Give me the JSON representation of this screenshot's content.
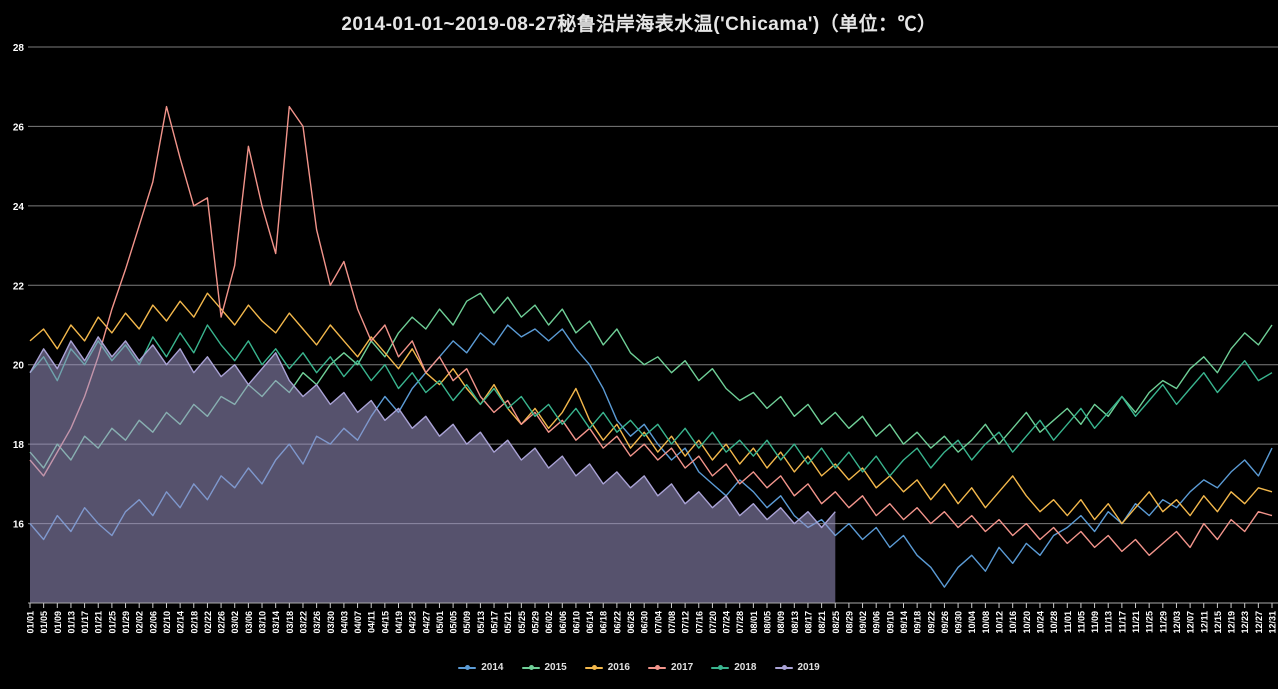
{
  "title": "2014-01-01~2019-08-27秘鲁沿岸海表水温('Chicama')（单位：℃）",
  "colors": {
    "background": "#000000",
    "grid_line": "#7d7d7d",
    "axis_line": "#aaaaaa",
    "tick": "#cccccc",
    "axis_label": "#ffffff",
    "title_text": "#e6e6e6",
    "legend_text": "#e0e0e0"
  },
  "legend": {
    "items": [
      {
        "label": "2014",
        "color": "#5b9bd5"
      },
      {
        "label": "2015",
        "color": "#6fcf97"
      },
      {
        "label": "2016",
        "color": "#f3b84c"
      },
      {
        "label": "2017",
        "color": "#f2948b"
      },
      {
        "label": "2018",
        "color": "#39b48e"
      },
      {
        "label": "2019",
        "color": "#aaa3d6"
      }
    ]
  },
  "chart_data": {
    "type": "line",
    "title": "2014-01-01~2019-08-27秘鲁沿岸海表水温('Chicama')（单位：℃）",
    "xlabel": "",
    "ylabel": "℃",
    "ylim": [
      14,
      28
    ],
    "yticks": [
      16,
      18,
      20,
      22,
      24,
      26,
      28
    ],
    "grid": true,
    "legend_position": "bottom",
    "categories": [
      "01/01",
      "01/05",
      "01/09",
      "01/13",
      "01/17",
      "01/21",
      "01/25",
      "01/29",
      "02/02",
      "02/06",
      "02/10",
      "02/14",
      "02/18",
      "02/22",
      "02/26",
      "03/02",
      "03/06",
      "03/10",
      "03/14",
      "03/18",
      "03/22",
      "03/26",
      "03/30",
      "04/03",
      "04/07",
      "04/11",
      "04/15",
      "04/19",
      "04/23",
      "04/27",
      "05/01",
      "05/05",
      "05/09",
      "05/13",
      "05/17",
      "05/21",
      "05/25",
      "05/29",
      "06/02",
      "06/06",
      "06/10",
      "06/14",
      "06/18",
      "06/22",
      "06/26",
      "06/30",
      "07/04",
      "07/08",
      "07/12",
      "07/16",
      "07/20",
      "07/24",
      "07/28",
      "08/01",
      "08/05",
      "08/09",
      "08/13",
      "08/17",
      "08/21",
      "08/25",
      "08/29",
      "09/02",
      "09/06",
      "09/10",
      "09/14",
      "09/18",
      "09/22",
      "09/26",
      "09/30",
      "10/04",
      "10/08",
      "10/12",
      "10/16",
      "10/20",
      "10/24",
      "10/28",
      "11/01",
      "11/05",
      "11/09",
      "11/13",
      "11/17",
      "11/21",
      "11/25",
      "11/29",
      "12/03",
      "12/07",
      "12/11",
      "12/15",
      "12/19",
      "12/23",
      "12/27",
      "12/31"
    ],
    "series": [
      {
        "name": "2014",
        "color": "#5b9bd5",
        "area": false,
        "values": [
          16.0,
          15.6,
          16.2,
          15.8,
          16.4,
          16.0,
          15.7,
          16.3,
          16.6,
          16.2,
          16.8,
          16.4,
          17.0,
          16.6,
          17.2,
          16.9,
          17.4,
          17.0,
          17.6,
          18.0,
          17.5,
          18.2,
          18.0,
          18.4,
          18.1,
          18.7,
          19.2,
          18.8,
          19.4,
          19.8,
          20.2,
          20.6,
          20.3,
          20.8,
          20.5,
          21.0,
          20.7,
          20.9,
          20.6,
          20.9,
          20.4,
          20.0,
          19.4,
          18.6,
          18.2,
          18.5,
          18.0,
          17.6,
          17.9,
          17.3,
          17.0,
          16.7,
          17.1,
          16.8,
          16.4,
          16.7,
          16.2,
          15.9,
          16.1,
          15.7,
          16.0,
          15.6,
          15.9,
          15.4,
          15.7,
          15.2,
          14.9,
          14.4,
          14.9,
          15.2,
          14.8,
          15.4,
          15.0,
          15.5,
          15.2,
          15.7,
          15.9,
          16.2,
          15.8,
          16.3,
          16.0,
          16.5,
          16.2,
          16.6,
          16.4,
          16.8,
          17.1,
          16.9,
          17.3,
          17.6,
          17.2,
          17.9
        ]
      },
      {
        "name": "2015",
        "color": "#6fcf97",
        "area": false,
        "values": [
          17.8,
          17.4,
          18.0,
          17.6,
          18.2,
          17.9,
          18.4,
          18.1,
          18.6,
          18.3,
          18.8,
          18.5,
          19.0,
          18.7,
          19.2,
          19.0,
          19.5,
          19.2,
          19.6,
          19.3,
          19.8,
          19.5,
          20.0,
          20.3,
          20.0,
          20.6,
          20.2,
          20.8,
          21.2,
          20.9,
          21.4,
          21.0,
          21.6,
          21.8,
          21.3,
          21.7,
          21.2,
          21.5,
          21.0,
          21.4,
          20.8,
          21.1,
          20.5,
          20.9,
          20.3,
          20.0,
          20.2,
          19.8,
          20.1,
          19.6,
          19.9,
          19.4,
          19.1,
          19.3,
          18.9,
          19.2,
          18.7,
          19.0,
          18.5,
          18.8,
          18.4,
          18.7,
          18.2,
          18.5,
          18.0,
          18.3,
          17.9,
          18.2,
          17.8,
          18.1,
          18.5,
          18.0,
          18.4,
          18.8,
          18.3,
          18.6,
          18.9,
          18.5,
          19.0,
          18.7,
          19.2,
          18.8,
          19.3,
          19.6,
          19.4,
          19.9,
          20.2,
          19.8,
          20.4,
          20.8,
          20.5,
          21.0
        ]
      },
      {
        "name": "2016",
        "color": "#f3b84c",
        "area": false,
        "values": [
          20.6,
          20.9,
          20.4,
          21.0,
          20.6,
          21.2,
          20.8,
          21.3,
          20.9,
          21.5,
          21.1,
          21.6,
          21.2,
          21.8,
          21.4,
          21.0,
          21.5,
          21.1,
          20.8,
          21.3,
          20.9,
          20.5,
          21.0,
          20.6,
          20.2,
          20.7,
          20.3,
          19.9,
          20.4,
          19.8,
          19.5,
          19.9,
          19.4,
          19.0,
          19.5,
          18.9,
          18.5,
          18.9,
          18.4,
          18.8,
          19.4,
          18.6,
          18.1,
          18.5,
          17.9,
          18.3,
          17.8,
          18.2,
          17.7,
          18.1,
          17.6,
          18.0,
          17.5,
          17.9,
          17.4,
          17.8,
          17.3,
          17.7,
          17.2,
          17.5,
          17.1,
          17.4,
          16.9,
          17.2,
          16.8,
          17.1,
          16.6,
          17.0,
          16.5,
          16.9,
          16.4,
          16.8,
          17.2,
          16.7,
          16.3,
          16.6,
          16.2,
          16.6,
          16.1,
          16.5,
          16.0,
          16.4,
          16.8,
          16.3,
          16.6,
          16.2,
          16.7,
          16.3,
          16.8,
          16.5,
          16.9,
          16.8
        ]
      },
      {
        "name": "2017",
        "color": "#f2948b",
        "area": false,
        "values": [
          17.6,
          17.2,
          17.8,
          18.4,
          19.2,
          20.2,
          21.4,
          22.4,
          23.5,
          24.6,
          26.5,
          25.2,
          24.0,
          24.2,
          21.2,
          22.5,
          25.5,
          24.0,
          22.8,
          26.5,
          26.0,
          23.4,
          22.0,
          22.6,
          21.4,
          20.6,
          21.0,
          20.2,
          20.6,
          19.8,
          20.2,
          19.6,
          19.9,
          19.2,
          18.8,
          19.1,
          18.5,
          18.8,
          18.3,
          18.6,
          18.1,
          18.4,
          17.9,
          18.2,
          17.7,
          18.0,
          17.6,
          17.9,
          17.4,
          17.7,
          17.2,
          17.5,
          17.0,
          17.3,
          16.9,
          17.2,
          16.7,
          17.0,
          16.5,
          16.8,
          16.4,
          16.7,
          16.2,
          16.5,
          16.1,
          16.4,
          16.0,
          16.3,
          15.9,
          16.2,
          15.8,
          16.1,
          15.7,
          16.0,
          15.6,
          15.9,
          15.5,
          15.8,
          15.4,
          15.7,
          15.3,
          15.6,
          15.2,
          15.5,
          15.8,
          15.4,
          16.0,
          15.6,
          16.1,
          15.8,
          16.3,
          16.2
        ]
      },
      {
        "name": "2018",
        "color": "#39b48e",
        "area": false,
        "values": [
          19.8,
          20.2,
          19.6,
          20.4,
          20.0,
          20.6,
          20.1,
          20.5,
          20.0,
          20.7,
          20.2,
          20.8,
          20.3,
          21.0,
          20.5,
          20.1,
          20.6,
          20.0,
          20.4,
          19.9,
          20.3,
          19.8,
          20.2,
          19.7,
          20.1,
          19.6,
          20.0,
          19.4,
          19.8,
          19.3,
          19.6,
          19.1,
          19.5,
          19.0,
          19.4,
          18.9,
          19.2,
          18.7,
          19.0,
          18.5,
          18.9,
          18.4,
          18.8,
          18.3,
          18.6,
          18.2,
          18.5,
          18.0,
          18.4,
          17.9,
          18.3,
          17.8,
          18.1,
          17.7,
          18.1,
          17.6,
          18.0,
          17.5,
          17.9,
          17.4,
          17.8,
          17.3,
          17.7,
          17.2,
          17.6,
          17.9,
          17.4,
          17.8,
          18.1,
          17.6,
          18.0,
          18.3,
          17.8,
          18.2,
          18.6,
          18.1,
          18.5,
          18.9,
          18.4,
          18.8,
          19.2,
          18.7,
          19.1,
          19.5,
          19.0,
          19.4,
          19.8,
          19.3,
          19.7,
          20.1,
          19.6,
          19.8
        ]
      },
      {
        "name": "2019",
        "color": "#aaa3d6",
        "area": true,
        "fill": "rgba(156,150,199,0.55)",
        "values": [
          19.8,
          20.4,
          19.9,
          20.6,
          20.1,
          20.7,
          20.2,
          20.6,
          20.1,
          20.5,
          20.0,
          20.4,
          19.8,
          20.2,
          19.7,
          20.0,
          19.5,
          19.9,
          20.3,
          19.6,
          19.2,
          19.5,
          19.0,
          19.3,
          18.8,
          19.1,
          18.6,
          18.9,
          18.4,
          18.7,
          18.2,
          18.5,
          18.0,
          18.3,
          17.8,
          18.1,
          17.6,
          17.9,
          17.4,
          17.7,
          17.2,
          17.5,
          17.0,
          17.3,
          16.9,
          17.2,
          16.7,
          17.0,
          16.5,
          16.8,
          16.4,
          16.7,
          16.2,
          16.5,
          16.1,
          16.4,
          16.0,
          16.3,
          15.9,
          16.3,
          null,
          null,
          null,
          null,
          null,
          null,
          null,
          null,
          null,
          null,
          null,
          null,
          null,
          null,
          null,
          null,
          null,
          null,
          null,
          null,
          null,
          null,
          null,
          null,
          null,
          null,
          null,
          null,
          null,
          null,
          null,
          null
        ]
      }
    ]
  }
}
